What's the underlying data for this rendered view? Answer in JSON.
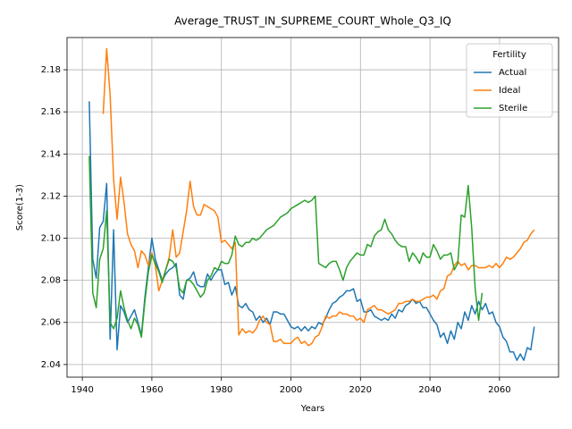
{
  "chart_data": {
    "type": "line",
    "title": "Average_TRUST_IN_SUPREME_COURT_Whole_Q3_IQ",
    "x_label": "Years",
    "y_label": "Score(1-3)",
    "legend_title": "Fertility",
    "legend_position": "upper right",
    "grid": true,
    "xlim": [
      1935.6,
      2077
    ],
    "ylim": [
      2.034,
      2.1953
    ],
    "xticks": [
      1940,
      1960,
      1980,
      2000,
      2020,
      2040,
      2060
    ],
    "yticks": [
      2.04,
      2.06,
      2.08,
      {
        "value": 2.1,
        "label": "2.10"
      },
      2.12,
      2.14,
      2.16,
      2.18
    ],
    "x": [
      1942,
      1943,
      1944,
      1945,
      1946,
      1947,
      1948,
      1949,
      1950,
      1951,
      1952,
      1953,
      1954,
      1955,
      1956,
      1957,
      1958,
      1959,
      1960,
      1961,
      1962,
      1963,
      1964,
      1965,
      1966,
      1967,
      1968,
      1969,
      1970,
      1971,
      1972,
      1973,
      1974,
      1975,
      1976,
      1977,
      1978,
      1979,
      1980,
      1981,
      1982,
      1983,
      1984,
      1985,
      1986,
      1987,
      1988,
      1989,
      1990,
      1991,
      1992,
      1993,
      1994,
      1995,
      1996,
      1997,
      1998,
      1999,
      2000,
      2001,
      2002,
      2003,
      2004,
      2005,
      2006,
      2007,
      2008,
      2009,
      2010,
      2011,
      2012,
      2013,
      2014,
      2015,
      2016,
      2017,
      2018,
      2019,
      2020,
      2021,
      2022,
      2023,
      2024,
      2025,
      2026,
      2027,
      2028,
      2029,
      2030,
      2031,
      2032,
      2033,
      2034,
      2035,
      2036,
      2037,
      2038,
      2039,
      2040,
      2041,
      2042,
      2043,
      2044,
      2045,
      2046,
      2047,
      2048,
      2049,
      2050,
      2051,
      2052,
      2053,
      2054,
      2055,
      2056,
      2057,
      2058,
      2059,
      2060,
      2061,
      2062,
      2063,
      2064,
      2065,
      2066,
      2067,
      2068,
      2069,
      2070
    ],
    "series": [
      {
        "name": "Actual",
        "color": "#1f77b4",
        "values": [
          2.165,
          2.09,
          2.081,
          2.105,
          2.108,
          2.126,
          2.052,
          2.104,
          2.047,
          2.068,
          2.065,
          2.06,
          2.063,
          2.066,
          2.06,
          2.054,
          2.072,
          2.086,
          2.1,
          2.09,
          2.085,
          2.08,
          2.083,
          2.085,
          2.086,
          2.088,
          2.073,
          2.071,
          2.08,
          2.081,
          2.084,
          2.078,
          2.077,
          2.077,
          2.083,
          2.08,
          2.083,
          2.085,
          2.085,
          2.078,
          2.079,
          2.073,
          2.077,
          2.068,
          2.067,
          2.069,
          2.066,
          2.065,
          2.061,
          2.063,
          2.06,
          2.062,
          2.059,
          2.065,
          2.065,
          2.064,
          2.064,
          2.061,
          2.058,
          2.057,
          2.058,
          2.056,
          2.058,
          2.056,
          2.058,
          2.057,
          2.06,
          2.059,
          2.062,
          2.066,
          2.069,
          2.07,
          2.072,
          2.073,
          2.075,
          2.075,
          2.076,
          2.07,
          2.071,
          2.065,
          2.065,
          2.066,
          2.063,
          2.062,
          2.061,
          2.062,
          2.061,
          2.064,
          2.062,
          2.066,
          2.065,
          2.068,
          2.069,
          2.071,
          2.069,
          2.07,
          2.067,
          2.067,
          2.064,
          2.061,
          2.059,
          2.053,
          2.055,
          2.05,
          2.056,
          2.052,
          2.06,
          2.057,
          2.065,
          2.061,
          2.068,
          2.064,
          2.07,
          2.066,
          2.069,
          2.064,
          2.065,
          2.06,
          2.058,
          2.053,
          2.051,
          2.046,
          2.046,
          2.042,
          2.045,
          2.042,
          2.048,
          2.047,
          2.058
        ]
      },
      {
        "name": "Ideal",
        "color": "#ff7f0e",
        "values": [
          null,
          null,
          null,
          null,
          2.159,
          2.19,
          2.168,
          2.128,
          2.109,
          2.129,
          2.117,
          2.102,
          2.097,
          2.094,
          2.086,
          2.094,
          2.092,
          2.087,
          2.093,
          2.087,
          2.075,
          2.08,
          2.085,
          2.091,
          2.104,
          2.091,
          2.093,
          2.103,
          2.113,
          2.127,
          2.115,
          2.111,
          2.111,
          2.116,
          2.115,
          2.114,
          2.113,
          2.11,
          2.098,
          2.099,
          2.097,
          2.095,
          2.098,
          2.054,
          2.057,
          2.055,
          2.056,
          2.055,
          2.057,
          2.061,
          2.063,
          2.06,
          2.059,
          2.051,
          2.051,
          2.052,
          2.05,
          2.05,
          2.05,
          2.052,
          2.053,
          2.05,
          2.051,
          2.049,
          2.05,
          2.053,
          2.054,
          2.058,
          2.063,
          2.062,
          2.063,
          2.063,
          2.065,
          2.064,
          2.064,
          2.063,
          2.063,
          2.061,
          2.062,
          2.06,
          2.066,
          2.067,
          2.068,
          2.066,
          2.066,
          2.065,
          2.064,
          2.065,
          2.066,
          2.069,
          2.069,
          2.07,
          2.07,
          2.071,
          2.07,
          2.07,
          2.071,
          2.072,
          2.072,
          2.073,
          2.071,
          2.075,
          2.076,
          2.082,
          2.083,
          2.087,
          2.089,
          2.087,
          2.088,
          2.085,
          2.087,
          2.087,
          2.086,
          2.086,
          2.086,
          2.087,
          2.086,
          2.088,
          2.086,
          2.088,
          2.091,
          2.09,
          2.091,
          2.093,
          2.095,
          2.098,
          2.099,
          2.102,
          2.104
        ]
      },
      {
        "name": "Sterile",
        "color": "#2ca02c",
        "values": [
          2.139,
          2.074,
          2.067,
          2.09,
          2.095,
          2.113,
          2.06,
          2.057,
          2.062,
          2.075,
          2.067,
          2.061,
          2.057,
          2.062,
          2.059,
          2.053,
          2.07,
          2.084,
          2.092,
          2.088,
          2.084,
          2.079,
          2.085,
          2.09,
          2.089,
          2.086,
          2.076,
          2.074,
          2.08,
          2.08,
          2.078,
          2.075,
          2.072,
          2.074,
          2.08,
          2.082,
          2.086,
          2.085,
          2.089,
          2.088,
          2.088,
          2.092,
          2.101,
          2.097,
          2.096,
          2.098,
          2.098,
          2.1,
          2.099,
          2.1,
          2.102,
          2.104,
          2.105,
          2.106,
          2.108,
          2.11,
          2.111,
          2.112,
          2.114,
          2.115,
          2.116,
          2.117,
          2.118,
          2.117,
          2.118,
          2.12,
          2.088,
          2.087,
          2.086,
          2.088,
          2.089,
          2.089,
          2.085,
          2.08,
          2.086,
          2.089,
          2.091,
          2.093,
          2.092,
          2.092,
          2.097,
          2.096,
          2.101,
          2.103,
          2.104,
          2.109,
          2.104,
          2.102,
          2.099,
          2.097,
          2.096,
          2.096,
          2.089,
          2.093,
          2.091,
          2.088,
          2.093,
          2.091,
          2.091,
          2.097,
          2.094,
          2.09,
          2.092,
          2.092,
          2.093,
          2.085,
          2.088,
          2.111,
          2.11,
          2.125,
          2.105,
          2.076,
          2.061,
          2.074,
          null,
          null,
          null,
          null,
          null,
          null,
          null,
          null,
          null,
          null,
          null,
          null,
          null,
          null,
          null
        ]
      }
    ]
  }
}
